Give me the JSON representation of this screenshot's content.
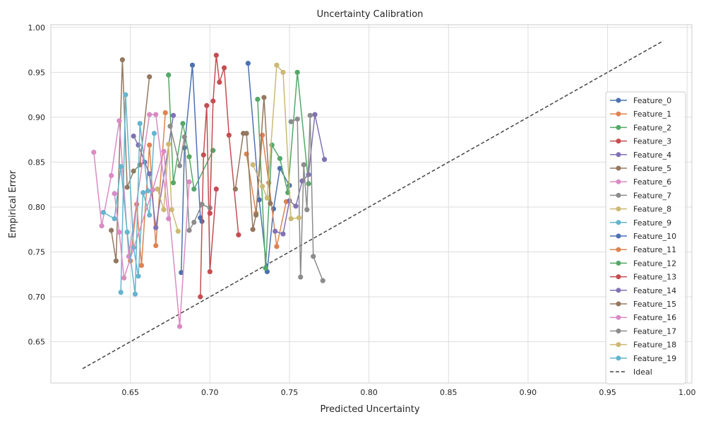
{
  "chart_data": {
    "type": "line",
    "title": "Uncertainty Calibration",
    "xlabel": "Predicted Uncertainty",
    "ylabel": "Empirical Error",
    "xlim": [
      0.6,
      1.003
    ],
    "ylim": [
      0.604,
      1.003
    ],
    "xticks": [
      0.65,
      0.7,
      0.75,
      0.8,
      0.85,
      0.9,
      0.95,
      1.0
    ],
    "yticks": [
      0.65,
      0.7,
      0.75,
      0.8,
      0.85,
      0.9,
      0.95,
      1.0
    ],
    "grid": true,
    "legend_position": "right",
    "ideal_line": {
      "name": "Ideal",
      "x": [
        0.62,
        0.985
      ],
      "y": [
        0.62,
        0.985
      ],
      "color": "#444444"
    },
    "series": [
      {
        "name": "Feature_0",
        "color": "#4c72b0",
        "x": [
          0.682,
          0.684,
          0.689,
          0.694,
          0.695
        ],
        "y": [
          0.727,
          0.866,
          0.958,
          0.788,
          0.784
        ]
      },
      {
        "name": "Feature_1",
        "color": "#dd8452",
        "x": [
          0.65,
          0.654,
          0.657,
          0.662,
          0.666,
          0.672
        ],
        "y": [
          0.74,
          0.803,
          0.735,
          0.869,
          0.757,
          0.905
        ]
      },
      {
        "name": "Feature_2",
        "color": "#55a868",
        "x": [
          0.674,
          0.677,
          0.683,
          0.687,
          0.69,
          0.702
        ],
        "y": [
          0.947,
          0.827,
          0.893,
          0.856,
          0.82,
          0.863
        ]
      },
      {
        "name": "Feature_3",
        "color": "#c44e52",
        "x": [
          0.694,
          0.696,
          0.698,
          0.7,
          0.704
        ],
        "y": [
          0.7,
          0.858,
          0.913,
          0.728,
          0.82
        ]
      },
      {
        "name": "Feature_4",
        "color": "#8172b3",
        "x": [
          0.652,
          0.655,
          0.659,
          0.662,
          0.666,
          0.677
        ],
        "y": [
          0.879,
          0.869,
          0.85,
          0.837,
          0.777,
          0.902
        ]
      },
      {
        "name": "Feature_5",
        "color": "#937860",
        "x": [
          0.638,
          0.641,
          0.645,
          0.648,
          0.652,
          0.656,
          0.662
        ],
        "y": [
          0.774,
          0.74,
          0.964,
          0.822,
          0.84,
          0.847,
          0.945
        ]
      },
      {
        "name": "Feature_6",
        "color": "#da8bc3",
        "x": [
          0.627,
          0.632,
          0.638,
          0.643,
          0.649,
          0.662,
          0.666,
          0.674
        ],
        "y": [
          0.861,
          0.779,
          0.835,
          0.896,
          0.745,
          0.903,
          0.903,
          0.787
        ]
      },
      {
        "name": "Feature_7",
        "color": "#8c8c8c",
        "x": [
          0.675,
          0.681,
          0.684,
          0.687,
          0.69,
          0.695,
          0.7
        ],
        "y": [
          0.89,
          0.846,
          0.878,
          0.774,
          0.783,
          0.803,
          0.799
        ]
      },
      {
        "name": "Feature_8",
        "color": "#ccb974",
        "x": [
          0.667,
          0.671,
          0.674,
          0.676,
          0.68
        ],
        "y": [
          0.82,
          0.797,
          0.87,
          0.797,
          0.773
        ]
      },
      {
        "name": "Feature_9",
        "color": "#64b5cd",
        "x": [
          0.644,
          0.647,
          0.652,
          0.655,
          0.658,
          0.662,
          0.665
        ],
        "y": [
          0.705,
          0.925,
          0.755,
          0.723,
          0.816,
          0.791,
          0.882
        ]
      },
      {
        "name": "Feature_10",
        "color": "#4c72b0",
        "x": [
          0.724,
          0.731,
          0.736,
          0.74,
          0.744,
          0.75
        ],
        "y": [
          0.96,
          0.808,
          0.728,
          0.798,
          0.843,
          0.824
        ]
      },
      {
        "name": "Feature_11",
        "color": "#dd8452",
        "x": [
          0.723,
          0.729,
          0.733,
          0.737,
          0.742,
          0.748
        ],
        "y": [
          0.859,
          0.793,
          0.88,
          0.827,
          0.756,
          0.806
        ]
      },
      {
        "name": "Feature_12",
        "color": "#55a868",
        "x": [
          0.73,
          0.735,
          0.739,
          0.744,
          0.749,
          0.755,
          0.762
        ],
        "y": [
          0.92,
          0.732,
          0.869,
          0.854,
          0.816,
          0.95,
          0.826
        ]
      },
      {
        "name": "Feature_13",
        "color": "#c44e52",
        "x": [
          0.7,
          0.702,
          0.704,
          0.706,
          0.709,
          0.712,
          0.718
        ],
        "y": [
          0.793,
          0.918,
          0.969,
          0.939,
          0.955,
          0.88,
          0.769
        ]
      },
      {
        "name": "Feature_14",
        "color": "#8172b3",
        "x": [
          0.741,
          0.746,
          0.75,
          0.754,
          0.758,
          0.762,
          0.766,
          0.772
        ],
        "y": [
          0.773,
          0.77,
          0.807,
          0.801,
          0.829,
          0.836,
          0.903,
          0.853
        ]
      },
      {
        "name": "Feature_15",
        "color": "#937860",
        "x": [
          0.716,
          0.721,
          0.723,
          0.727,
          0.729,
          0.734,
          0.738
        ],
        "y": [
          0.82,
          0.882,
          0.882,
          0.775,
          0.791,
          0.922,
          0.804
        ]
      },
      {
        "name": "Feature_16",
        "color": "#da8bc3",
        "x": [
          0.64,
          0.643,
          0.646,
          0.664,
          0.671,
          0.681,
          0.687
        ],
        "y": [
          0.815,
          0.772,
          0.721,
          0.819,
          0.862,
          0.667,
          0.828
        ]
      },
      {
        "name": "Feature_17",
        "color": "#8c8c8c",
        "x": [
          0.751,
          0.755,
          0.757,
          0.759,
          0.761,
          0.763,
          0.765,
          0.771
        ],
        "y": [
          0.895,
          0.898,
          0.722,
          0.847,
          0.797,
          0.902,
          0.745,
          0.718
        ]
      },
      {
        "name": "Feature_18",
        "color": "#ccb974",
        "x": [
          0.727,
          0.733,
          0.736,
          0.742,
          0.746,
          0.751,
          0.756
        ],
        "y": [
          0.847,
          0.823,
          0.81,
          0.958,
          0.95,
          0.787,
          0.788
        ]
      },
      {
        "name": "Feature_19",
        "color": "#64b5cd",
        "x": [
          0.633,
          0.64,
          0.644,
          0.648,
          0.653,
          0.656,
          0.661
        ],
        "y": [
          0.794,
          0.787,
          0.845,
          0.772,
          0.703,
          0.893,
          0.818
        ]
      }
    ]
  }
}
